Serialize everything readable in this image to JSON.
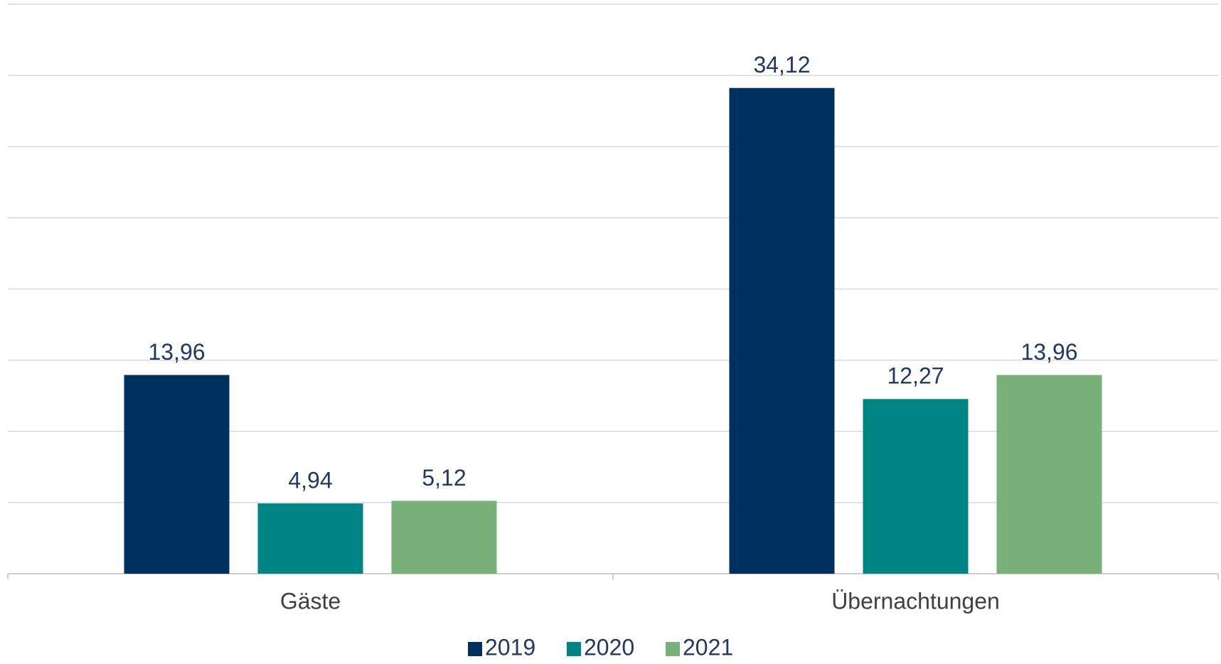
{
  "chart_data": {
    "type": "bar",
    "categories": [
      "Gäste",
      "Übernachtungen"
    ],
    "series": [
      {
        "name": "2019",
        "color": "#003060",
        "values": [
          13.96,
          34.12
        ],
        "value_labels": [
          "13,96",
          "34,12"
        ]
      },
      {
        "name": "2020",
        "color": "#008585",
        "values": [
          4.94,
          12.27
        ],
        "value_labels": [
          "4,94",
          "12,27"
        ]
      },
      {
        "name": "2021",
        "color": "#79b07a",
        "values": [
          5.12,
          13.96
        ],
        "value_labels": [
          "5,12",
          "13,96"
        ]
      }
    ],
    "ylim": [
      0,
      40
    ],
    "yticks": [
      0,
      5,
      10,
      15,
      20,
      25,
      30,
      35,
      40
    ],
    "grid": true,
    "legend": "bottom"
  }
}
